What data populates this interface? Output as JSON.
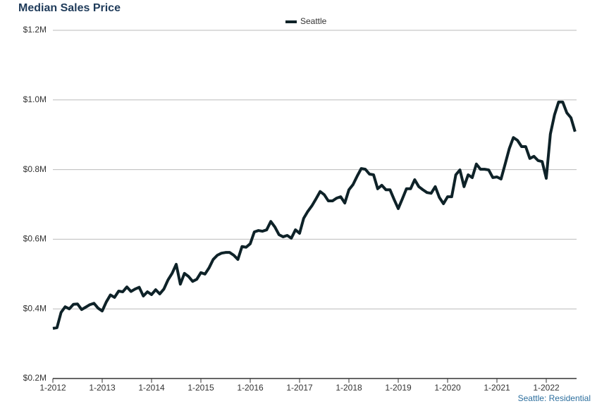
{
  "chart_data": {
    "type": "line",
    "title": "Median Sales Price",
    "source": "Seattle: Residential",
    "categories": [
      "1-2012",
      null,
      null,
      null,
      null,
      null,
      null,
      null,
      null,
      null,
      null,
      null,
      "1-2013",
      null,
      null,
      null,
      null,
      null,
      null,
      null,
      null,
      null,
      null,
      null,
      "1-2014",
      null,
      null,
      null,
      null,
      null,
      null,
      null,
      null,
      null,
      null,
      null,
      "1-2015",
      null,
      null,
      null,
      null,
      null,
      null,
      null,
      null,
      null,
      null,
      null,
      "1-2016",
      null,
      null,
      null,
      null,
      null,
      null,
      null,
      null,
      null,
      null,
      null,
      "1-2017",
      null,
      null,
      null,
      null,
      null,
      null,
      null,
      null,
      null,
      null,
      null,
      "1-2018",
      null,
      null,
      null,
      null,
      null,
      null,
      null,
      null,
      null,
      null,
      null,
      "1-2019",
      null,
      null,
      null,
      null,
      null,
      null,
      null,
      null,
      null,
      null,
      null,
      "1-2020",
      null,
      null,
      null,
      null,
      null,
      null,
      null,
      null,
      null,
      null,
      null,
      "1-2021",
      null,
      null,
      null,
      null,
      null,
      null,
      null,
      null,
      null,
      null,
      null,
      "1-2022",
      null,
      null,
      null,
      null,
      null,
      null,
      null
    ],
    "series": [
      {
        "name": "Seattle",
        "color": "#0e2228",
        "values": [
          0.344,
          0.346,
          0.39,
          0.406,
          0.4,
          0.413,
          0.414,
          0.398,
          0.405,
          0.412,
          0.416,
          0.402,
          0.394,
          0.42,
          0.44,
          0.433,
          0.451,
          0.449,
          0.463,
          0.45,
          0.457,
          0.462,
          0.437,
          0.449,
          0.441,
          0.455,
          0.443,
          0.457,
          0.483,
          0.502,
          0.528,
          0.471,
          0.502,
          0.493,
          0.479,
          0.485,
          0.504,
          0.5,
          0.518,
          0.542,
          0.554,
          0.56,
          0.562,
          0.562,
          0.554,
          0.542,
          0.579,
          0.577,
          0.587,
          0.621,
          0.625,
          0.623,
          0.627,
          0.651,
          0.635,
          0.613,
          0.607,
          0.611,
          0.603,
          0.627,
          0.617,
          0.66,
          0.68,
          0.696,
          0.716,
          0.737,
          0.728,
          0.71,
          0.71,
          0.718,
          0.722,
          0.704,
          0.742,
          0.757,
          0.781,
          0.803,
          0.801,
          0.787,
          0.785,
          0.745,
          0.755,
          0.742,
          0.742,
          0.714,
          0.688,
          0.716,
          0.745,
          0.745,
          0.771,
          0.751,
          0.742,
          0.734,
          0.732,
          0.751,
          0.72,
          0.702,
          0.722,
          0.722,
          0.785,
          0.799,
          0.751,
          0.785,
          0.777,
          0.816,
          0.801,
          0.801,
          0.799,
          0.777,
          0.779,
          0.773,
          0.816,
          0.86,
          0.892,
          0.884,
          0.866,
          0.866,
          0.832,
          0.838,
          0.826,
          0.823,
          0.775,
          0.902,
          0.957,
          0.994,
          0.994,
          0.963,
          0.949,
          0.909
        ]
      }
    ],
    "ylim": [
      0.2,
      1.2
    ],
    "yticks": [
      {
        "value": 0.2,
        "label": "$0.2M"
      },
      {
        "value": 0.4,
        "label": "$0.4M"
      },
      {
        "value": 0.6,
        "label": "$0.6M"
      },
      {
        "value": 0.8,
        "label": "$0.8M"
      },
      {
        "value": 1.0,
        "label": "$1.0M"
      },
      {
        "value": 1.2,
        "label": "$1.2M"
      }
    ],
    "grid": true,
    "legend": "top"
  }
}
